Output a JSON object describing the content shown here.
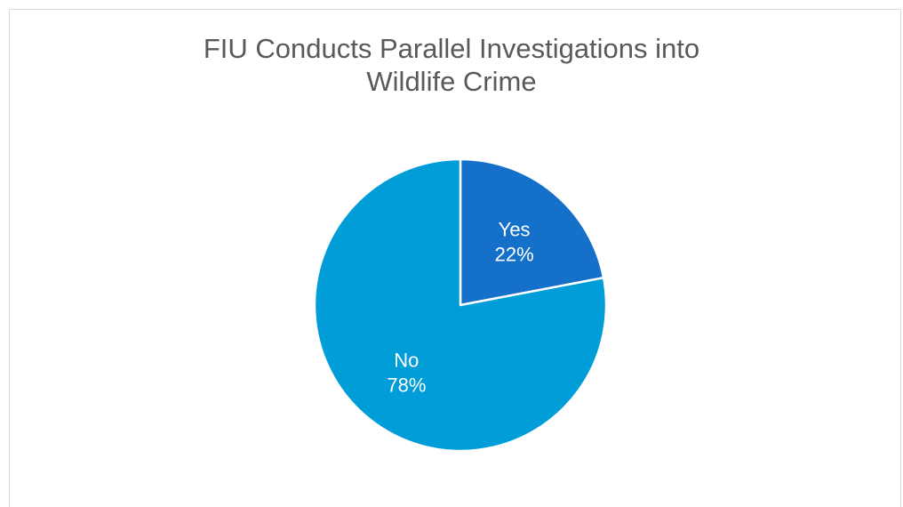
{
  "chart_data": {
    "type": "pie",
    "title_lines": [
      "FIU Conducts Parallel Investigations into",
      "Wildlife Crime"
    ],
    "slices": [
      {
        "name": "Yes",
        "value": 22,
        "label": "22%",
        "color": "#1570c9"
      },
      {
        "name": "No",
        "value": 78,
        "label": "78%",
        "color": "#009dd9"
      }
    ],
    "start_angle_deg": 0,
    "direction": "clockwise",
    "legend": "none"
  }
}
